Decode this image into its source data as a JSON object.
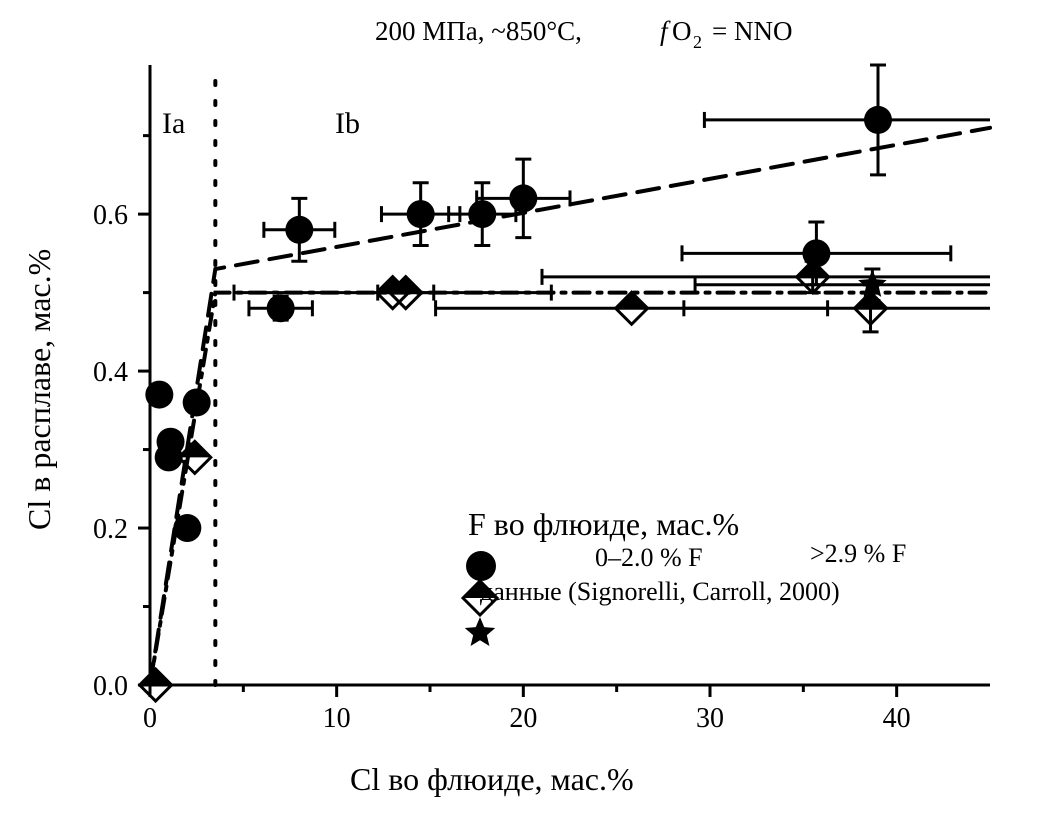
{
  "chart_data": {
    "type": "scatter",
    "title": "200 МПа, ~850°C,",
    "title_fo2": "O",
    "title_fo2_prefix": "f",
    "title_fo2_sub": "2",
    "title_fo2_value": "= NNO",
    "xlabel": "Cl во флюиде, мас.%",
    "ylabel": "Cl в расплаве, мас.%",
    "xlim": [
      0,
      45
    ],
    "ylim": [
      0,
      0.79
    ],
    "xticks": [
      "0",
      "10",
      "20",
      "30",
      "40"
    ],
    "yticks": [
      "0.0",
      "0.2",
      "0.4",
      "0.6"
    ],
    "region_labels": [
      "Ia",
      "Ib"
    ],
    "legend": {
      "title": "F во флюиде, мас.%",
      "placement": "bottom-right",
      "entries": [
        ">2.9 % F",
        "0–2.0 % F",
        "данные (Signorelli, Carroll, 2000)"
      ]
    },
    "series": [
      {
        "name": ">2.9 % F",
        "marker": "circle",
        "points": [
          {
            "x": 0.5,
            "y": 0.37
          },
          {
            "x": 1.1,
            "y": 0.31
          },
          {
            "x": 1.0,
            "y": 0.29
          },
          {
            "x": 2.5,
            "y": 0.36
          },
          {
            "x": 2.0,
            "y": 0.2
          },
          {
            "x": 7.0,
            "y": 0.48,
            "xerr": 1.7,
            "yerr": 0.015
          },
          {
            "x": 8.0,
            "y": 0.58,
            "xerr": 1.9,
            "yerr": 0.04
          },
          {
            "x": 14.5,
            "y": 0.6,
            "xerr": 2.1,
            "yerr": 0.04
          },
          {
            "x": 17.8,
            "y": 0.6,
            "xerr": 1.8,
            "yerr": 0.04
          },
          {
            "x": 20.0,
            "y": 0.62,
            "xerr": 2.5,
            "yerr": 0.05
          },
          {
            "x": 35.7,
            "y": 0.55,
            "xerr": 7.2,
            "yerr": 0.04
          },
          {
            "x": 39.0,
            "y": 0.72,
            "xerr": 9.3,
            "yerr": 0.07
          }
        ]
      },
      {
        "name": "0–2.0 % F",
        "marker": "half-diamond",
        "points": [
          {
            "x": 0.3,
            "y": 0.0
          },
          {
            "x": 2.4,
            "y": 0.29
          },
          {
            "x": 13.0,
            "y": 0.5,
            "xerr": 8.5
          },
          {
            "x": 13.7,
            "y": 0.5,
            "xerr": 1.5
          },
          {
            "x": 25.8,
            "y": 0.48,
            "xerr": 10.5
          },
          {
            "x": 35.5,
            "y": 0.52,
            "xerr": 14.5,
            "yerr": 0.02
          },
          {
            "x": 38.6,
            "y": 0.48,
            "xerr": 10,
            "yerr": 0.03
          }
        ]
      },
      {
        "name": "Signorelli, Carroll, 2000",
        "marker": "star",
        "points": [
          {
            "x": 38.7,
            "y": 0.51,
            "xerr": 9.5,
            "yerr": 0.02
          }
        ]
      }
    ],
    "lines": [
      {
        "style": "dashed",
        "points": [
          [
            0,
            0
          ],
          [
            3.5,
            0.53
          ],
          [
            45,
            0.71
          ]
        ]
      },
      {
        "style": "dash-dot",
        "points": [
          [
            0,
            0
          ],
          [
            3.5,
            0.5
          ],
          [
            45,
            0.5
          ]
        ]
      },
      {
        "style": "dotted-vertical",
        "points": [
          [
            3.5,
            0
          ],
          [
            3.5,
            0.79
          ]
        ]
      }
    ]
  }
}
